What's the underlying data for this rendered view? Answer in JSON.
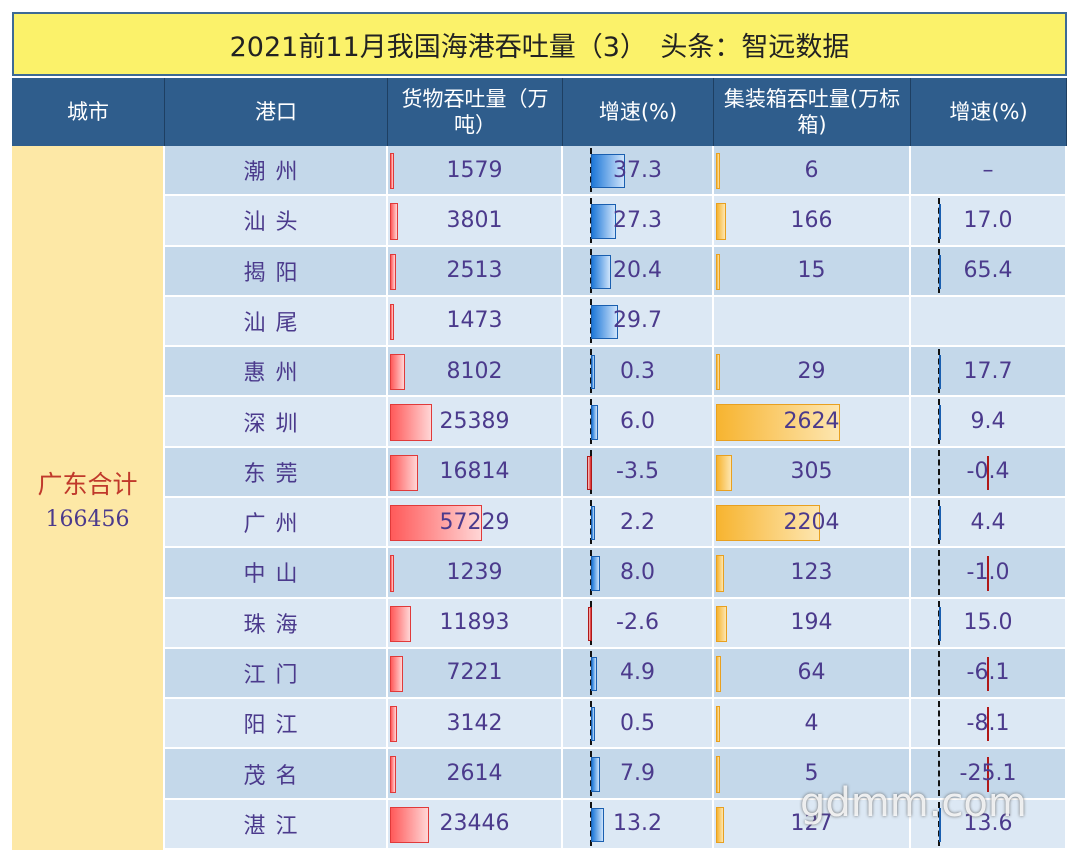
{
  "title": "2021前11月我国海港吞吐量（3）　头条：智远数据",
  "table": {
    "headers": [
      "城市",
      "港口",
      "货物吞吐量（万吨）",
      "增速(%)",
      "集装箱吞吐量(万标箱)",
      "增速(%)"
    ],
    "group": {
      "label": "广东合计",
      "total": "166456"
    },
    "rows": [
      [
        "潮州",
        "1579",
        "37.3",
        "6",
        "–"
      ],
      [
        "汕头",
        "3801",
        "27.3",
        "166",
        "17.0"
      ],
      [
        "揭阳",
        "2513",
        "20.4",
        "15",
        "65.4"
      ],
      [
        "汕尾",
        "1473",
        "29.7",
        null,
        null
      ],
      [
        "惠州",
        "8102",
        "0.3",
        "29",
        "17.7"
      ],
      [
        "深圳",
        "25389",
        "6.0",
        "2624",
        "9.4"
      ],
      [
        "东莞",
        "16814",
        "-3.5",
        "305",
        "-0.4"
      ],
      [
        "广州",
        "57229",
        "2.2",
        "2204",
        "4.4"
      ],
      [
        "中山",
        "1239",
        "8.0",
        "123",
        "-1.0"
      ],
      [
        "珠海",
        "11893",
        "-2.6",
        "194",
        "15.0"
      ],
      [
        "江门",
        "7221",
        "4.9",
        "64",
        "-6.1"
      ],
      [
        "阳江",
        "3142",
        "0.5",
        "4",
        "-8.1"
      ],
      [
        "茂名",
        "2614",
        "7.9",
        "5",
        "-25.1"
      ],
      [
        "湛江",
        "23446",
        "13.2",
        "127",
        "13.6"
      ]
    ]
  },
  "watermark": "gdmm.com"
}
